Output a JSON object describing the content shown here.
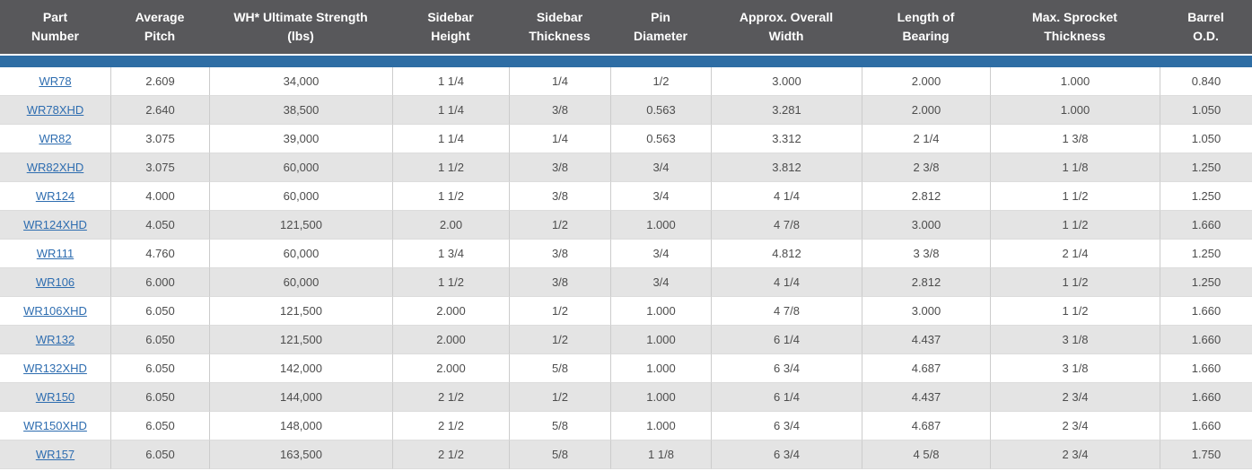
{
  "table": {
    "columns": [
      "Part Number",
      "Average Pitch",
      "WH* Ultimate Strength (lbs)",
      "Sidebar Height",
      "Sidebar Thickness",
      "Pin Diameter",
      "Approx. Overall Width",
      "Length of Bearing",
      "Max. Sprocket Thickness",
      "Barrel O.D."
    ],
    "rows": [
      {
        "part_number": "WR78",
        "cells": [
          "2.609",
          "34,000",
          "1 1/4",
          "1/4",
          "1/2",
          "3.000",
          "2.000",
          "1.000",
          "0.840"
        ]
      },
      {
        "part_number": "WR78XHD",
        "cells": [
          "2.640",
          "38,500",
          "1 1/4",
          "3/8",
          "0.563",
          "3.281",
          "2.000",
          "1.000",
          "1.050"
        ]
      },
      {
        "part_number": "WR82",
        "cells": [
          "3.075",
          "39,000",
          "1 1/4",
          "1/4",
          "0.563",
          "3.312",
          "2 1/4",
          "1 3/8",
          "1.050"
        ]
      },
      {
        "part_number": "WR82XHD",
        "cells": [
          "3.075",
          "60,000",
          "1 1/2",
          "3/8",
          "3/4",
          "3.812",
          "2 3/8",
          "1 1/8",
          "1.250"
        ]
      },
      {
        "part_number": "WR124",
        "cells": [
          "4.000",
          "60,000",
          "1 1/2",
          "3/8",
          "3/4",
          "4 1/4",
          "2.812",
          "1 1/2",
          "1.250"
        ]
      },
      {
        "part_number": "WR124XHD",
        "cells": [
          "4.050",
          "121,500",
          "2.00",
          "1/2",
          "1.000",
          "4 7/8",
          "3.000",
          "1 1/2",
          "1.660"
        ]
      },
      {
        "part_number": "WR111",
        "cells": [
          "4.760",
          "60,000",
          "1 3/4",
          "3/8",
          "3/4",
          "4.812",
          "3 3/8",
          "2 1/4",
          "1.250"
        ]
      },
      {
        "part_number": "WR106",
        "cells": [
          "6.000",
          "60,000",
          "1 1/2",
          "3/8",
          "3/4",
          "4 1/4",
          "2.812",
          "1 1/2",
          "1.250"
        ]
      },
      {
        "part_number": "WR106XHD",
        "cells": [
          "6.050",
          "121,500",
          "2.000",
          "1/2",
          "1.000",
          "4 7/8",
          "3.000",
          "1 1/2",
          "1.660"
        ]
      },
      {
        "part_number": "WR132",
        "cells": [
          "6.050",
          "121,500",
          "2.000",
          "1/2",
          "1.000",
          "6 1/4",
          "4.437",
          "3 1/8",
          "1.660"
        ]
      },
      {
        "part_number": "WR132XHD",
        "cells": [
          "6.050",
          "142,000",
          "2.000",
          "5/8",
          "1.000",
          "6 3/4",
          "4.687",
          "3 1/8",
          "1.660"
        ]
      },
      {
        "part_number": "WR150",
        "cells": [
          "6.050",
          "144,000",
          "2 1/2",
          "1/2",
          "1.000",
          "6 1/4",
          "4.437",
          "2 3/4",
          "1.660"
        ]
      },
      {
        "part_number": "WR150XHD",
        "cells": [
          "6.050",
          "148,000",
          "2 1/2",
          "5/8",
          "1.000",
          "6 3/4",
          "4.687",
          "2 3/4",
          "1.660"
        ]
      },
      {
        "part_number": "WR157",
        "cells": [
          "6.050",
          "163,500",
          "2 1/2",
          "5/8",
          "1 1/8",
          "6 3/4",
          "4 5/8",
          "2 3/4",
          "1.750"
        ]
      }
    ]
  },
  "colors": {
    "header_bg": "#58585b",
    "header_text": "#ffffff",
    "accent_bar": "#2e6da4",
    "alt_row_bg": "#e4e4e4",
    "cell_text": "#4d4d4d",
    "link": "#2e6db0"
  }
}
